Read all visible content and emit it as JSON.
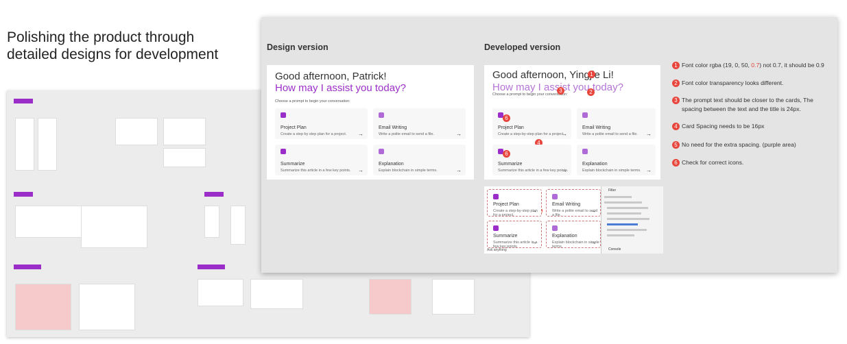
{
  "heading": "Polishing the product through detailed designs for development",
  "design": {
    "label": "Design version",
    "greeting": "Good afternoon, Patrick!",
    "question": "How may I assist you today?",
    "prompt": "Choose a prompt to begin your conversation:",
    "cards": [
      {
        "title": "Project Plan",
        "desc": "Create a step by step plan for a project."
      },
      {
        "title": "Email Writing",
        "desc": "Write a polite email to send a file."
      },
      {
        "title": "Summarize",
        "desc": "Summarize this article in a few key points."
      },
      {
        "title": "Explanation",
        "desc": "Explain blockchain in simple terms."
      }
    ]
  },
  "developed": {
    "label": "Developed version",
    "greeting": "Good afternoon, Yingjie Li!",
    "question": "How may I assist you today?",
    "prompt": "Choose a prompt to begin your conversation:",
    "cards": [
      {
        "title": "Project Plan",
        "desc": "Create a step-by-step plan for a project."
      },
      {
        "title": "Email Writing",
        "desc": "Write a polite email to send a file."
      },
      {
        "title": "Summarize",
        "desc": "Summarize this article in a few key points."
      },
      {
        "title": "Explanation",
        "desc": "Explain blockchain in simple terms."
      }
    ]
  },
  "screenshot": {
    "cards": [
      {
        "title": "Project Plan",
        "desc": "Create a step-by-step plan for a project."
      },
      {
        "title": "Email Writing",
        "desc": "Write a polite email to send a file."
      },
      {
        "title": "Summarize",
        "desc": "Summarize this article in a few key points"
      },
      {
        "title": "Explanation",
        "desc": "Explain blockchain in simple terms."
      }
    ],
    "input": "Ask anything",
    "filter": "Filter",
    "tab": "Console"
  },
  "notes": [
    {
      "number": 1,
      "text_before": "Font color rgba (19, 0, 50, ",
      "highlight": "0.7",
      "text_after": ") not 0.7, it should be 0.9"
    },
    {
      "number": 2,
      "text": "Font color transparency looks different."
    },
    {
      "number": 3,
      "text": "The prompt text should be closer to the cards, The spacing between the text and the title is 24px."
    },
    {
      "number": 4,
      "text": "Card Spacing needs to be 16px"
    },
    {
      "number": 5,
      "text": "No need for the extra spacing. (purple area)"
    },
    {
      "number": 6,
      "text": "Check for correct icons."
    }
  ]
}
